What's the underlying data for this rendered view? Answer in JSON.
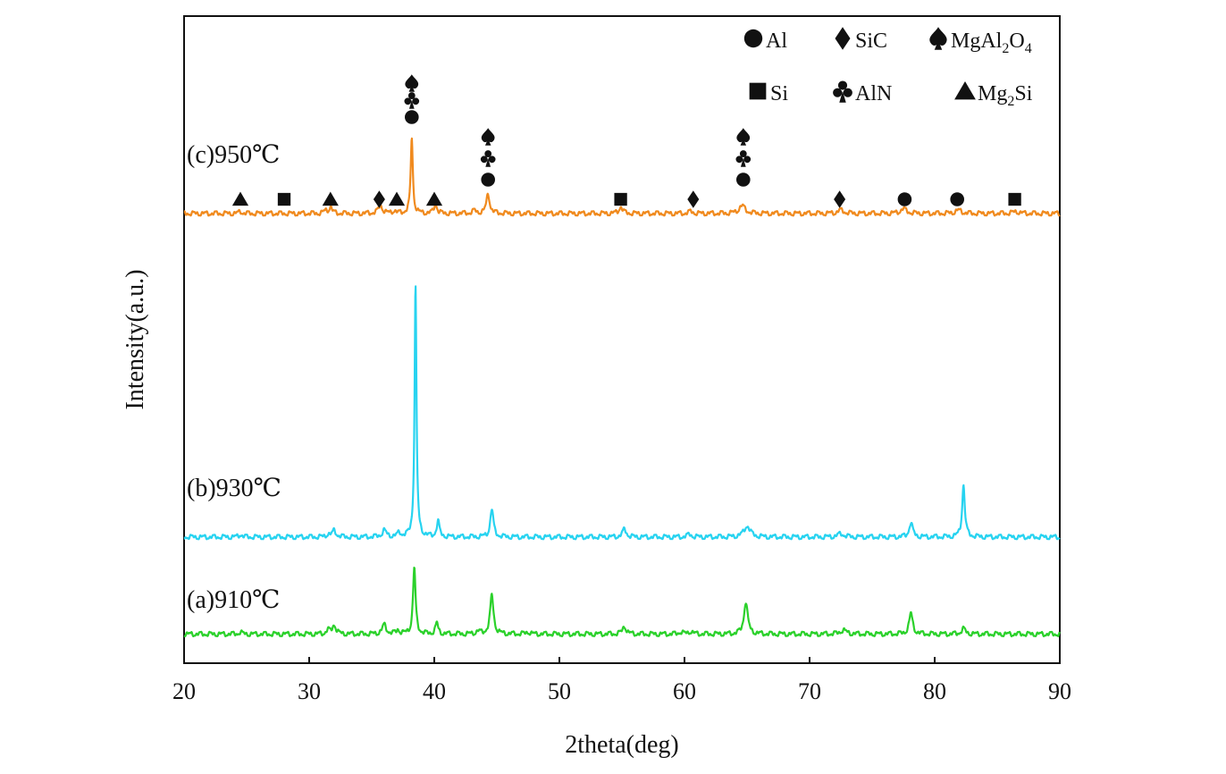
{
  "chart_data": {
    "type": "line",
    "title": "",
    "xlabel": "2theta(deg)",
    "ylabel": "Intensity(a.u.)",
    "xlim": [
      20,
      90
    ],
    "xticks": [
      20,
      30,
      40,
      50,
      60,
      70,
      80,
      90
    ],
    "y_ticks_shown": false,
    "grid": false,
    "legend_position": "top-right",
    "colors": {
      "a": "#2bd12b",
      "b": "#27d3f0",
      "c": "#f08a1e",
      "axes": "#111111",
      "markers": "#111111"
    },
    "series": [
      {
        "name": "(a)910℃",
        "color": "#2bd12b",
        "baseline": 0.045,
        "peaks": [
          [
            24.5,
            0.003,
            0.15
          ],
          [
            31.5,
            0.006,
            0.15
          ],
          [
            32,
            0.014,
            0.18
          ],
          [
            36,
            0.014,
            0.2
          ],
          [
            37.1,
            0.006,
            0.15
          ],
          [
            38.4,
            0.103,
            0.12
          ],
          [
            40.2,
            0.017,
            0.13
          ],
          [
            43.5,
            0.004,
            0.2
          ],
          [
            44.6,
            0.06,
            0.16
          ],
          [
            47.5,
            0.003,
            0.2
          ],
          [
            55.2,
            0.012,
            0.18
          ],
          [
            59.7,
            0.003,
            0.2
          ],
          [
            60.5,
            0.004,
            0.2
          ],
          [
            64.9,
            0.05,
            0.18
          ],
          [
            72.7,
            0.006,
            0.3
          ],
          [
            78.1,
            0.032,
            0.17
          ],
          [
            82.3,
            0.008,
            0.2
          ]
        ]
      },
      {
        "name": "(b)930℃",
        "color": "#27d3f0",
        "baseline": 0.195,
        "peaks": [
          [
            24.5,
            0.004,
            0.15
          ],
          [
            31.5,
            0.004,
            0.15
          ],
          [
            32,
            0.01,
            0.18
          ],
          [
            36,
            0.01,
            0.2
          ],
          [
            37.2,
            0.006,
            0.15
          ],
          [
            38.5,
            0.39,
            0.09
          ],
          [
            40.3,
            0.024,
            0.13
          ],
          [
            44.6,
            0.043,
            0.15
          ],
          [
            55.2,
            0.012,
            0.18
          ],
          [
            60.4,
            0.004,
            0.2
          ],
          [
            65,
            0.017,
            0.3
          ],
          [
            72.5,
            0.005,
            0.3
          ],
          [
            78.1,
            0.022,
            0.17
          ],
          [
            82.3,
            0.08,
            0.13
          ]
        ]
      },
      {
        "name": "(c)950℃",
        "color": "#f08a1e",
        "baseline": 0.695,
        "peaks": [
          [
            24.5,
            0.003,
            0.15
          ],
          [
            31.3,
            0.004,
            0.15
          ],
          [
            31.7,
            0.01,
            0.15
          ],
          [
            35.7,
            0.012,
            0.2
          ],
          [
            36.8,
            0.004,
            0.15
          ],
          [
            38.2,
            0.118,
            0.1
          ],
          [
            40.1,
            0.016,
            0.13
          ],
          [
            43.2,
            0.004,
            0.2
          ],
          [
            44.3,
            0.03,
            0.16
          ],
          [
            54.9,
            0.01,
            0.18
          ],
          [
            60.5,
            0.003,
            0.2
          ],
          [
            64.6,
            0.012,
            0.3
          ],
          [
            72.5,
            0.005,
            0.3
          ],
          [
            77.5,
            0.007,
            0.3
          ],
          [
            81.9,
            0.005,
            0.3
          ],
          [
            86.5,
            0.003,
            0.3
          ]
        ]
      }
    ],
    "phase_legend": [
      {
        "symbol": "circle",
        "label": "Al"
      },
      {
        "symbol": "diamond",
        "label": "SiC"
      },
      {
        "symbol": "spade",
        "label": "MgAl",
        "sub1": "2",
        "mid": "O",
        "sub2": "4"
      },
      {
        "symbol": "square",
        "label": "Si"
      },
      {
        "symbol": "club",
        "label": "AlN"
      },
      {
        "symbol": "triangle",
        "label": "Mg",
        "sub1": "2",
        "mid": "Si"
      }
    ],
    "phase_markers": [
      {
        "x": 24.5,
        "symbols": [
          "triangle"
        ]
      },
      {
        "x": 28.0,
        "symbols": [
          "square"
        ]
      },
      {
        "x": 31.7,
        "symbols": [
          "triangle"
        ]
      },
      {
        "x": 35.6,
        "symbols": [
          "diamond"
        ]
      },
      {
        "x": 37.0,
        "symbols": [
          "triangle"
        ]
      },
      {
        "x": 38.2,
        "symbols": [
          "circle",
          "club",
          "spade"
        ]
      },
      {
        "x": 40.0,
        "symbols": [
          "triangle"
        ]
      },
      {
        "x": 44.3,
        "symbols": [
          "circle",
          "club",
          "spade"
        ]
      },
      {
        "x": 54.9,
        "symbols": [
          "square"
        ]
      },
      {
        "x": 60.7,
        "symbols": [
          "diamond"
        ]
      },
      {
        "x": 64.7,
        "symbols": [
          "circle",
          "club",
          "spade"
        ]
      },
      {
        "x": 72.4,
        "symbols": [
          "diamond"
        ]
      },
      {
        "x": 77.6,
        "symbols": [
          "circle"
        ]
      },
      {
        "x": 81.8,
        "symbols": [
          "circle"
        ]
      },
      {
        "x": 86.4,
        "symbols": [
          "square"
        ]
      }
    ]
  }
}
